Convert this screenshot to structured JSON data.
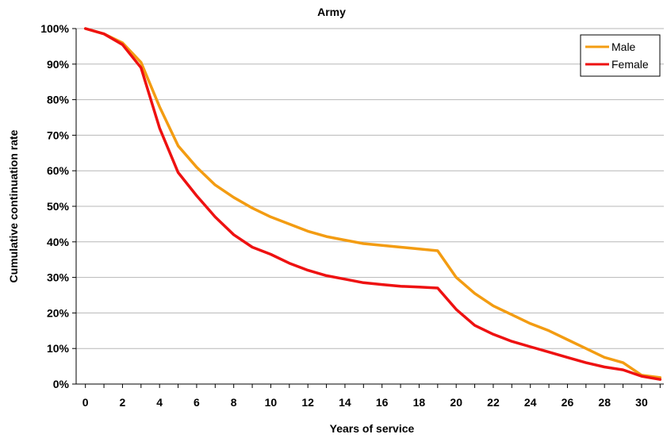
{
  "chart_data": {
    "type": "line",
    "title": "Army",
    "xlabel": "Years of service",
    "ylabel": "Cumulative continuation rate",
    "xlim": [
      -0.5,
      31.2
    ],
    "ylim": [
      0,
      100
    ],
    "x_ticks": [
      0,
      2,
      4,
      6,
      8,
      10,
      12,
      14,
      16,
      18,
      20,
      22,
      24,
      26,
      28,
      30
    ],
    "x_tick_labels": [
      "0",
      "2",
      "4",
      "6",
      "8",
      "10",
      "12",
      "14",
      "16",
      "18",
      "20",
      "22",
      "24",
      "26",
      "28",
      "30"
    ],
    "y_ticks": [
      0,
      10,
      20,
      30,
      40,
      50,
      60,
      70,
      80,
      90,
      100
    ],
    "y_tick_labels": [
      "0%",
      "10%",
      "20%",
      "30%",
      "40%",
      "50%",
      "60%",
      "70%",
      "80%",
      "90%",
      "100%"
    ],
    "grid": "horizontal",
    "legend_position": "top-right",
    "x": [
      0,
      1,
      2,
      3,
      4,
      5,
      6,
      7,
      8,
      9,
      10,
      11,
      12,
      13,
      14,
      15,
      16,
      17,
      18,
      19,
      20,
      21,
      22,
      23,
      24,
      25,
      26,
      27,
      28,
      29,
      30,
      31
    ],
    "series": [
      {
        "name": "Male",
        "color": "#F39C12",
        "values": [
          100,
          98.5,
          96,
          90.5,
          78,
          67,
          61,
          56,
          52.5,
          49.5,
          47,
          45,
          43,
          41.5,
          40.5,
          39.5,
          39,
          38.5,
          38,
          37.5,
          30,
          25.5,
          22,
          19.5,
          17,
          15,
          12.5,
          10,
          7.5,
          6,
          2.5,
          1.8
        ]
      },
      {
        "name": "Female",
        "color": "#EE1111",
        "values": [
          100,
          98.5,
          95.5,
          89,
          72,
          59.5,
          53,
          47,
          42,
          38.5,
          36.5,
          34,
          32,
          30.5,
          29.5,
          28.5,
          28,
          27.5,
          27.3,
          27,
          21,
          16.5,
          14,
          12,
          10.5,
          9,
          7.5,
          6,
          4.8,
          4,
          2.2,
          1.3
        ]
      }
    ]
  }
}
